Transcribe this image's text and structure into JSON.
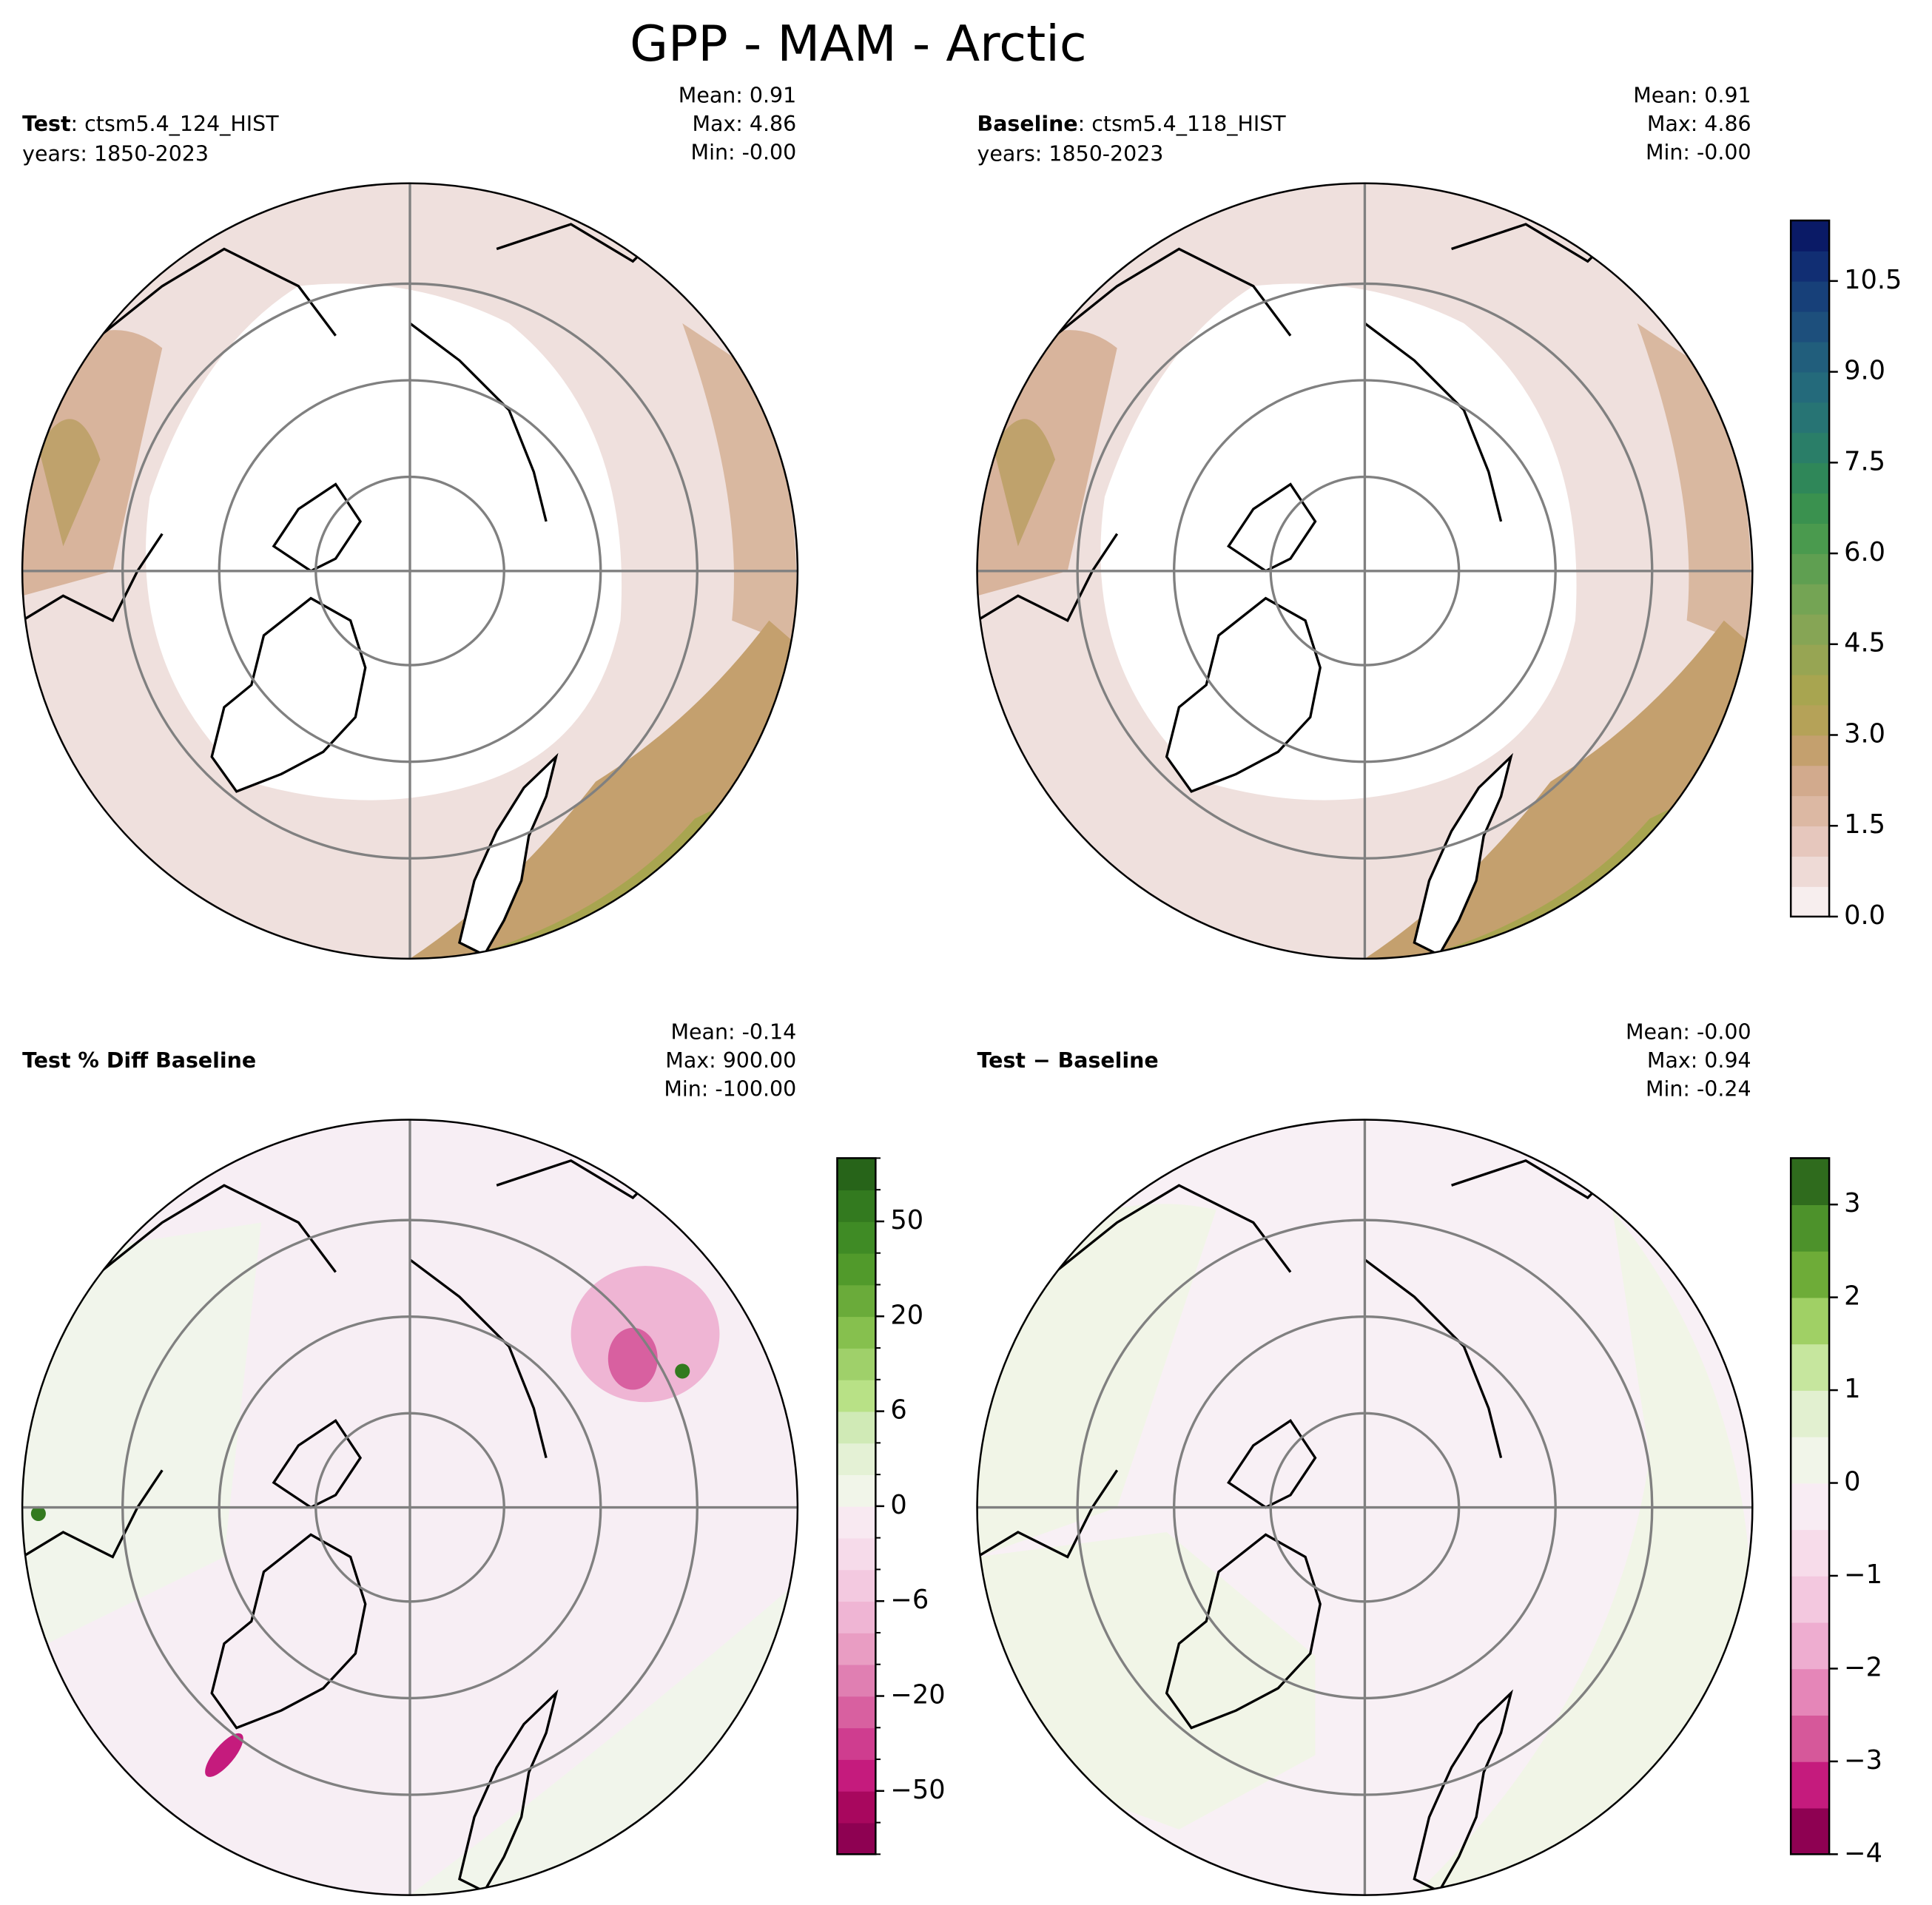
{
  "title": "GPP - MAM - Arctic",
  "panels": [
    {
      "label_bold": "Test",
      "label": ": ctsm5.4_124_HIST",
      "years": "years: 1850-2023",
      "stats": [
        "Mean:  0.91",
        "Max:  4.86",
        "Min: -0.00"
      ]
    },
    {
      "label_bold": "Baseline",
      "label": ": ctsm5.4_118_HIST",
      "years": "years: 1850-2023",
      "stats": [
        "Mean:  0.91",
        "Max:  4.86",
        "Min: -0.00"
      ]
    },
    {
      "label_bold": "Test % Diff Baseline",
      "stats": [
        "Mean: -0.14",
        "Max: 900.00",
        "Min: -100.00"
      ]
    },
    {
      "label_bold": "Test − Baseline",
      "stats": [
        "Mean: -0.00",
        "Max:  0.94",
        "Min: -0.24"
      ]
    }
  ],
  "colorbars": [
    {
      "lim": [
        0,
        11.5
      ],
      "ticks": [
        {
          "value": 0,
          "label": "0.0"
        },
        {
          "value": 1.5,
          "label": "1.5"
        },
        {
          "value": 3,
          "label": "3.0"
        },
        {
          "value": 4.5,
          "label": "4.5"
        },
        {
          "value": 6,
          "label": "6.0"
        },
        {
          "value": 7.5,
          "label": "7.5"
        },
        {
          "value": 9,
          "label": "9.0"
        },
        {
          "value": 10.5,
          "label": "10.5"
        }
      ],
      "colors": [
        "#f7eeee",
        "#eedad6",
        "#e6c7bd",
        "#dcb8a3",
        "#d2aa8d",
        "#c4a06e",
        "#b5a258",
        "#a8a550",
        "#97a553",
        "#86a555",
        "#74a454",
        "#5f9f51",
        "#4a9a4e",
        "#3a914f",
        "#2f8759",
        "#2a7e68",
        "#277474",
        "#246a7b",
        "#215e7c",
        "#1d4f7c",
        "#174079",
        "#112e73",
        "#0a1a66"
      ]
    },
    {
      "levels": [
        -70,
        -60,
        -50,
        -40,
        -30,
        -20,
        -15,
        -10,
        -6,
        -4,
        -2,
        0,
        2,
        4,
        6,
        10,
        15,
        20,
        30,
        40,
        50,
        60,
        70
      ],
      "ticks": [
        {
          "value": -50,
          "label": "−50"
        },
        {
          "value": -20,
          "label": "−20"
        },
        {
          "value": -6,
          "label": "−6"
        },
        0,
        6,
        20,
        50
      ],
      "colors": [
        "#8e0152",
        "#a8075e",
        "#c51b7d",
        "#cf3d8f",
        "#d860a0",
        "#e07fb2",
        "#e99dc3",
        "#efb5d4",
        "#f3c9e0",
        "#f6dbea",
        "#f8e9f1",
        "#f1f5e9",
        "#e4f1d5",
        "#d0eab6",
        "#b8e186",
        "#9fd06a",
        "#86c04e",
        "#6aab3a",
        "#519a2b",
        "#3f8b25",
        "#337a1f",
        "#276419"
      ]
    },
    {
      "lim": [
        -4,
        3.5
      ],
      "ticks": [
        {
          "value": -4,
          "label": "−4"
        },
        {
          "value": -3,
          "label": "−3"
        },
        {
          "value": -2,
          "label": "−2"
        },
        {
          "value": -1,
          "label": "−1"
        },
        0,
        1,
        2,
        3
      ],
      "colors": [
        "#8e0152",
        "#c51b7d",
        "#d6589a",
        "#e586b8",
        "#eeadd0",
        "#f3c8df",
        "#f7dcea",
        "#f8ecf3",
        "#f1f5e9",
        "#e2f0d0",
        "#c6e69e",
        "#a0d065",
        "#6eac38",
        "#4d922b",
        "#2f6b1d"
      ]
    }
  ]
}
